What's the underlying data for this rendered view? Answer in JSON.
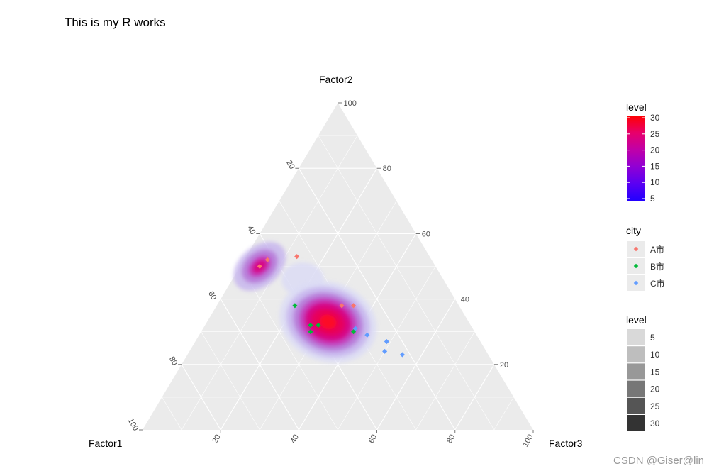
{
  "title": "This is my R works",
  "watermark": "CSDN @Giser@lin",
  "chart_data": {
    "type": "ternary-density",
    "axes": {
      "left": {
        "label": "Factor1",
        "ticks": [
          20,
          40,
          60,
          80,
          100
        ]
      },
      "top": {
        "label": "Factor2",
        "ticks": [
          20,
          40,
          60,
          80,
          100
        ]
      },
      "right": {
        "label": "Factor3",
        "ticks": [
          20,
          40,
          60,
          80,
          100
        ]
      }
    },
    "grid_step": 10,
    "density_levels": [
      5,
      10,
      15,
      20,
      25,
      30
    ],
    "points": [
      {
        "city": "A市",
        "factor1": 45,
        "factor2": 50,
        "factor3": 5
      },
      {
        "city": "A市",
        "factor1": 42,
        "factor2": 52,
        "factor3": 6
      },
      {
        "city": "A市",
        "factor1": 34,
        "factor2": 53,
        "factor3": 13
      },
      {
        "city": "A市",
        "factor1": 30,
        "factor2": 38,
        "factor3": 32
      },
      {
        "city": "A市",
        "factor1": 27,
        "factor2": 38,
        "factor3": 35
      },
      {
        "city": "B市",
        "factor1": 42,
        "factor2": 38,
        "factor3": 20
      },
      {
        "city": "B市",
        "factor1": 41,
        "factor2": 32,
        "factor3": 27
      },
      {
        "city": "B市",
        "factor1": 39,
        "factor2": 32,
        "factor3": 29
      },
      {
        "city": "B市",
        "factor1": 42,
        "factor2": 30,
        "factor3": 28
      },
      {
        "city": "B市",
        "factor1": 31,
        "factor2": 30,
        "factor3": 39
      },
      {
        "city": "C市",
        "factor1": 30,
        "factor2": 31,
        "factor3": 39
      },
      {
        "city": "C市",
        "factor1": 28,
        "factor2": 29,
        "factor3": 43
      },
      {
        "city": "C市",
        "factor1": 24,
        "factor2": 27,
        "factor3": 49
      },
      {
        "city": "C市",
        "factor1": 26,
        "factor2": 24,
        "factor3": 50
      },
      {
        "city": "C市",
        "factor1": 22,
        "factor2": 23,
        "factor3": 55
      }
    ]
  },
  "legend": {
    "fill_title": "level",
    "fill_labels": [
      "30",
      "25",
      "20",
      "15",
      "10",
      "5"
    ],
    "fill_colors": [
      "#ff0000",
      "#e8006a",
      "#c000a8",
      "#9000d4",
      "#5a00f2",
      "#2200ff"
    ],
    "city_title": "city",
    "city_items": [
      {
        "label": "A市",
        "color": "#f8766d"
      },
      {
        "label": "B市",
        "color": "#00ba38"
      },
      {
        "label": "C市",
        "color": "#619cff"
      }
    ],
    "alpha_title": "level",
    "alpha_labels": [
      "5",
      "10",
      "15",
      "20",
      "25",
      "30"
    ],
    "alpha_colors": [
      "#d9d9d9",
      "#bebebe",
      "#989898",
      "#777777",
      "#555555",
      "#333333"
    ]
  }
}
